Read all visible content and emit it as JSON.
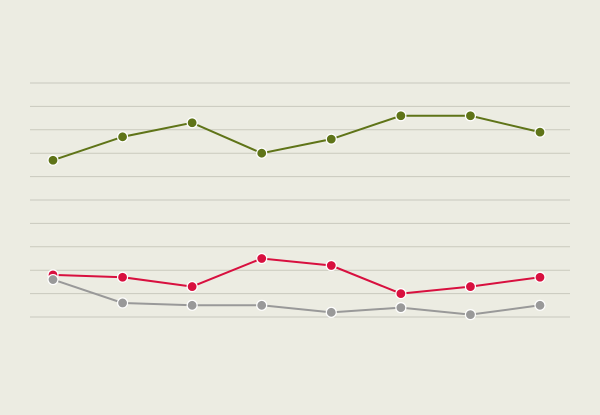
{
  "chart_data": {
    "type": "line",
    "categories": [
      null,
      null,
      null,
      null,
      null,
      null,
      null,
      null
    ],
    "series": [
      {
        "color": "#5f7418",
        "values": [
          6.7,
          7.7,
          8.3,
          7.0,
          7.6,
          8.6,
          8.6,
          7.9
        ]
      },
      {
        "color": "#d8103f",
        "values": [
          1.8,
          1.7,
          1.3,
          2.5,
          2.2,
          1.0,
          1.3,
          1.7
        ]
      },
      {
        "color": "#999999",
        "values": [
          1.6,
          0.6,
          0.5,
          0.5,
          0.2,
          0.4,
          0.1,
          0.5
        ]
      }
    ],
    "ylim": [
      0,
      10
    ],
    "yticks": [
      0,
      1,
      2,
      3,
      4,
      5,
      6,
      7,
      8,
      9,
      10
    ],
    "grid": true
  }
}
